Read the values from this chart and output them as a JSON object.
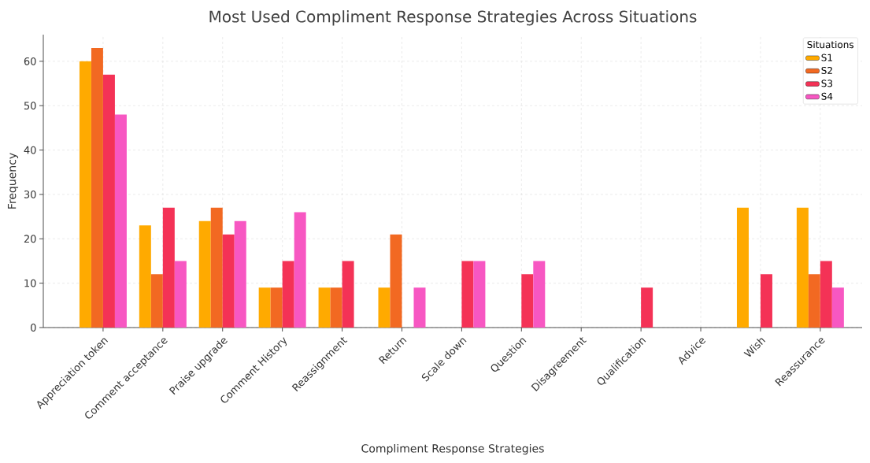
{
  "chart_data": {
    "type": "bar",
    "title": "Most Used Compliment Response Strategies Across Situations",
    "xlabel": "Compliment Response Strategies",
    "ylabel": "Frequency",
    "legend_title": "Situations",
    "categories": [
      "Appreciation token",
      "Comment acceptance",
      "Praise upgrade",
      "Comment History",
      "Reassignment",
      "Return",
      "Scale down",
      "Question",
      "Disagreement",
      "Qualification",
      "Advice",
      "Wish",
      "Reassurance"
    ],
    "series": [
      {
        "name": "S1",
        "color": "#ffaa00",
        "values": [
          60,
          23,
          24,
          9,
          9,
          9,
          0,
          0,
          0,
          0,
          0,
          27,
          27
        ]
      },
      {
        "name": "S2",
        "color": "#f26922",
        "values": [
          63,
          12,
          27,
          9,
          9,
          21,
          0,
          0,
          0,
          0,
          0,
          0,
          12
        ]
      },
      {
        "name": "S3",
        "color": "#f43256",
        "values": [
          57,
          27,
          21,
          15,
          15,
          0,
          15,
          12,
          0,
          9,
          0,
          12,
          15
        ]
      },
      {
        "name": "S4",
        "color": "#f757c2",
        "values": [
          48,
          15,
          24,
          26,
          0,
          9,
          15,
          15,
          0,
          0,
          0,
          0,
          9
        ]
      }
    ],
    "ylim": [
      0,
      66
    ],
    "yticks": [
      0,
      10,
      20,
      30,
      40,
      50,
      60
    ],
    "grid": true,
    "legend": "top right"
  }
}
